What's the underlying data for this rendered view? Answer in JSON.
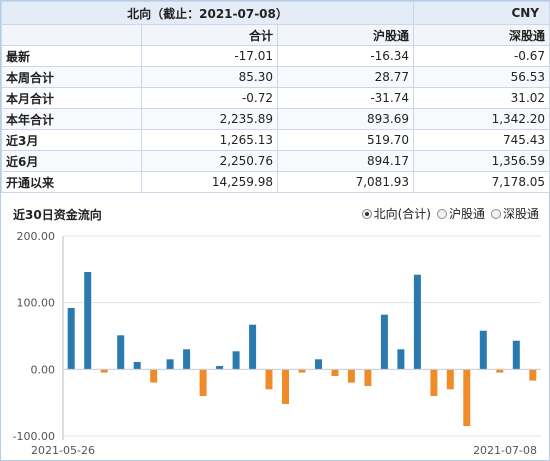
{
  "table": {
    "title": "北向（截止：2021-07-08）",
    "unit": "CNY",
    "columns": [
      "合计",
      "沪股通",
      "深股通"
    ],
    "rows": [
      {
        "label": "最新",
        "values": [
          "-17.01",
          "-16.34",
          "-0.67"
        ]
      },
      {
        "label": "本周合计",
        "values": [
          "85.30",
          "28.77",
          "56.53"
        ]
      },
      {
        "label": "本月合计",
        "values": [
          "-0.72",
          "-31.74",
          "31.02"
        ]
      },
      {
        "label": "本年合计",
        "values": [
          "2,235.89",
          "893.69",
          "1,342.20"
        ]
      },
      {
        "label": "近3月",
        "values": [
          "1,265.13",
          "519.70",
          "745.43"
        ]
      },
      {
        "label": "近6月",
        "values": [
          "2,250.76",
          "894.17",
          "1,356.59"
        ]
      },
      {
        "label": "开通以来",
        "values": [
          "14,259.98",
          "7,081.93",
          "7,178.05"
        ]
      }
    ]
  },
  "chart_header": {
    "title": "近30日资金流向",
    "options": [
      {
        "label": "北向(合计)",
        "selected": true
      },
      {
        "label": "沪股通",
        "selected": false
      },
      {
        "label": "深股通",
        "selected": false
      }
    ]
  },
  "colors": {
    "positive": "#2a7ab0",
    "negative": "#f08b2a"
  },
  "chart_data": {
    "type": "bar",
    "title": "近30日资金流向",
    "x_start_label": "2021-05-26",
    "x_end_label": "2021-07-08",
    "yticks": [
      "200.00",
      "100.00",
      "0.00",
      "-100.00"
    ],
    "ylim": [
      -100,
      200
    ],
    "values": [
      92,
      146,
      -5,
      51,
      11,
      -20,
      15,
      30,
      -40,
      5,
      27,
      67,
      -30,
      -52,
      -5,
      15,
      -10,
      -20,
      -25,
      82,
      30,
      142,
      -40,
      -30,
      -85,
      58,
      -5,
      43,
      -17
    ]
  }
}
